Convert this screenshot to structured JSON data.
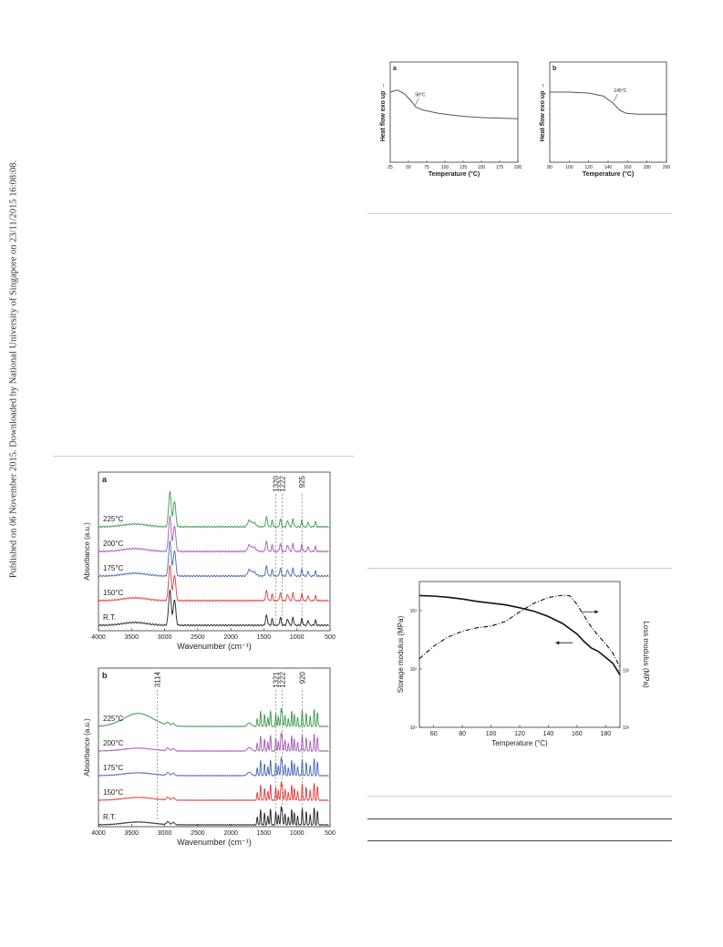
{
  "sidebar": {
    "text": "Published on 06 November 2015. Downloaded by National University of Singapore on 23/11/2015 16:08:08."
  },
  "dsc": {
    "panels": [
      {
        "letter": "a",
        "ylabel": "Heat flow exo up →",
        "xlabel": "Temperature (°C)",
        "xticks": [
          "25",
          "50",
          "75",
          "100",
          "125",
          "150",
          "175",
          "200"
        ],
        "xrange": [
          25,
          200
        ],
        "annotation": "58°C",
        "annotation_x": 58,
        "curve": [
          [
            25,
            0.7
          ],
          [
            35,
            0.72
          ],
          [
            45,
            0.68
          ],
          [
            55,
            0.6
          ],
          [
            60,
            0.55
          ],
          [
            70,
            0.52
          ],
          [
            90,
            0.49
          ],
          [
            110,
            0.47
          ],
          [
            130,
            0.455
          ],
          [
            150,
            0.445
          ],
          [
            175,
            0.44
          ],
          [
            200,
            0.435
          ]
        ]
      },
      {
        "letter": "b",
        "ylabel": "Heat flow exo up →",
        "xlabel": "Temperature (°C)",
        "xticks": [
          "80",
          "100",
          "120",
          "140",
          "160",
          "180",
          "200"
        ],
        "xrange": [
          80,
          200
        ],
        "annotation": "145°C",
        "annotation_x": 145,
        "curve": [
          [
            80,
            0.7
          ],
          [
            100,
            0.7
          ],
          [
            120,
            0.69
          ],
          [
            135,
            0.66
          ],
          [
            145,
            0.59
          ],
          [
            152,
            0.52
          ],
          [
            158,
            0.49
          ],
          [
            170,
            0.48
          ],
          [
            185,
            0.48
          ],
          [
            200,
            0.48
          ]
        ]
      }
    ]
  },
  "ftir": [
    {
      "letter": "a",
      "ylabel": "Absorbance (a.u.)",
      "xlabel": "Wavenumber (cm⁻¹)",
      "xticks": [
        "4000",
        "3500",
        "3000",
        "2500",
        "2000",
        "1500",
        "1000",
        "500"
      ],
      "markers": [
        {
          "label": "1320",
          "x": 1320
        },
        {
          "label": "1222",
          "x": 1222
        },
        {
          "label": "925",
          "x": 925
        }
      ],
      "traces": [
        {
          "name": "225°C",
          "color": "#3c9a4e"
        },
        {
          "name": "200°C",
          "color": "#a45ab0"
        },
        {
          "name": "175°C",
          "color": "#4a66b0"
        },
        {
          "name": "150°C",
          "color": "#e03a3a"
        },
        {
          "name": "R.T.",
          "color": "#222222"
        }
      ]
    },
    {
      "letter": "b",
      "ylabel": "Absorbance (a.u.)",
      "xlabel": "Wavenumber (cm⁻¹)",
      "xticks": [
        "4000",
        "3500",
        "3000",
        "2500",
        "2000",
        "1500",
        "1000",
        "500"
      ],
      "markers": [
        {
          "label": "3114",
          "x": 3114
        },
        {
          "label": "1321",
          "x": 1321
        },
        {
          "label": "1222",
          "x": 1222
        },
        {
          "label": "920",
          "x": 920
        }
      ],
      "traces": [
        {
          "name": "225°C",
          "color": "#3c9a4e"
        },
        {
          "name": "200°C",
          "color": "#a45ab0"
        },
        {
          "name": "175°C",
          "color": "#4a66b0"
        },
        {
          "name": "150°C",
          "color": "#e03a3a"
        },
        {
          "name": "R.T.",
          "color": "#222222"
        }
      ]
    }
  ],
  "dma": {
    "ylabel_left": "Storage modulus (MPa)",
    "ylabel_right": "Loss modulus (MPa)",
    "xlabel": "Temperature (°C)",
    "xticks": [
      "60",
      "80",
      "100",
      "120",
      "140",
      "160",
      "180"
    ],
    "xrange": [
      50,
      190
    ],
    "yleft_ticks": [
      "10¹",
      "10²",
      "10³"
    ],
    "yright_ticks": [
      "10¹",
      "10²"
    ],
    "storage": [
      [
        50,
        3.26
      ],
      [
        60,
        3.25
      ],
      [
        70,
        3.23
      ],
      [
        80,
        3.2
      ],
      [
        90,
        3.16
      ],
      [
        100,
        3.13
      ],
      [
        110,
        3.1
      ],
      [
        120,
        3.05
      ],
      [
        130,
        2.99
      ],
      [
        140,
        2.9
      ],
      [
        150,
        2.78
      ],
      [
        160,
        2.6
      ],
      [
        165,
        2.47
      ],
      [
        170,
        2.36
      ],
      [
        175,
        2.3
      ],
      [
        180,
        2.2
      ],
      [
        185,
        2.1
      ],
      [
        190,
        1.9
      ]
    ],
    "loss": [
      [
        50,
        2.2
      ],
      [
        60,
        2.42
      ],
      [
        70,
        2.58
      ],
      [
        80,
        2.68
      ],
      [
        90,
        2.74
      ],
      [
        100,
        2.77
      ],
      [
        110,
        2.85
      ],
      [
        120,
        3.02
      ],
      [
        130,
        3.17
      ],
      [
        140,
        3.27
      ],
      [
        150,
        3.31
      ],
      [
        155,
        3.3
      ],
      [
        160,
        3.15
      ],
      [
        165,
        2.95
      ],
      [
        170,
        2.75
      ],
      [
        175,
        2.6
      ],
      [
        180,
        2.46
      ],
      [
        185,
        2.3
      ],
      [
        190,
        2.05
      ]
    ]
  },
  "colors": {
    "rule": "#cfcfc4",
    "ink": "#222222"
  }
}
